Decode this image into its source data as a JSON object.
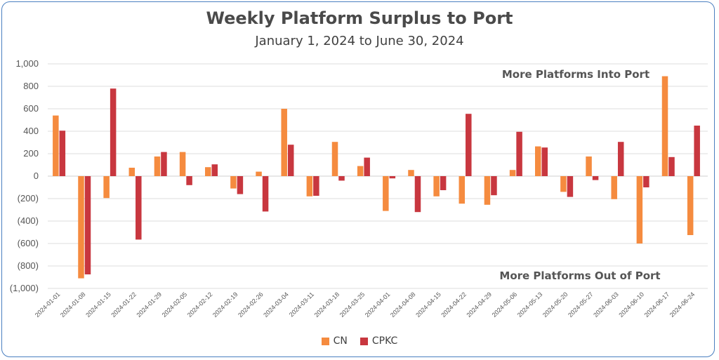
{
  "colors": {
    "cn": "#F58B3F",
    "cpkc": "#C8373F",
    "grid": "#dcdcdc",
    "border": "#4a7fc0"
  },
  "chart_data": {
    "type": "bar",
    "title": "Weekly Platform Surplus to Port",
    "subtitle": "January 1, 2024 to June 30, 2024",
    "ylim": [
      -1000,
      1000
    ],
    "yticks": [
      1000,
      800,
      600,
      400,
      200,
      0,
      -200,
      -400,
      -600,
      -800,
      -1000
    ],
    "ytick_labels": [
      "1,000",
      "800",
      "600",
      "400",
      "200",
      "0",
      "(200)",
      "(400)",
      "(600)",
      "(800)",
      "(1,000)"
    ],
    "grid": true,
    "legend_position": "bottom",
    "annotations": [
      "More Platforms Into Port",
      "More Platforms Out of Port"
    ],
    "categories": [
      "2024-01-01",
      "2024-01-08",
      "2024-01-15",
      "2024-01-22",
      "2024-01-29",
      "2024-02-05",
      "2024-02-12",
      "2024-02-19",
      "2024-02-26",
      "2024-03-04",
      "2024-03-11",
      "2024-03-18",
      "2024-03-25",
      "2024-04-01",
      "2024-04-08",
      "2024-04-15",
      "2024-04-22",
      "2024-04-29",
      "2024-05-06",
      "2024-05-13",
      "2024-05-20",
      "2024-05-27",
      "2024-06-03",
      "2024-06-10",
      "2024-06-17",
      "2024-06-24"
    ],
    "series": [
      {
        "name": "CN",
        "values": [
          540,
          -910,
          -195,
          75,
          175,
          215,
          80,
          -110,
          40,
          600,
          -180,
          305,
          90,
          -310,
          55,
          -180,
          -245,
          -255,
          55,
          265,
          -140,
          175,
          -205,
          -600,
          890,
          -525
        ]
      },
      {
        "name": "CPKC",
        "values": [
          405,
          -875,
          780,
          -565,
          215,
          -80,
          105,
          -160,
          -315,
          280,
          -175,
          -40,
          165,
          -20,
          -320,
          -125,
          555,
          -170,
          395,
          255,
          -185,
          -35,
          305,
          -100,
          170,
          450
        ]
      }
    ]
  }
}
